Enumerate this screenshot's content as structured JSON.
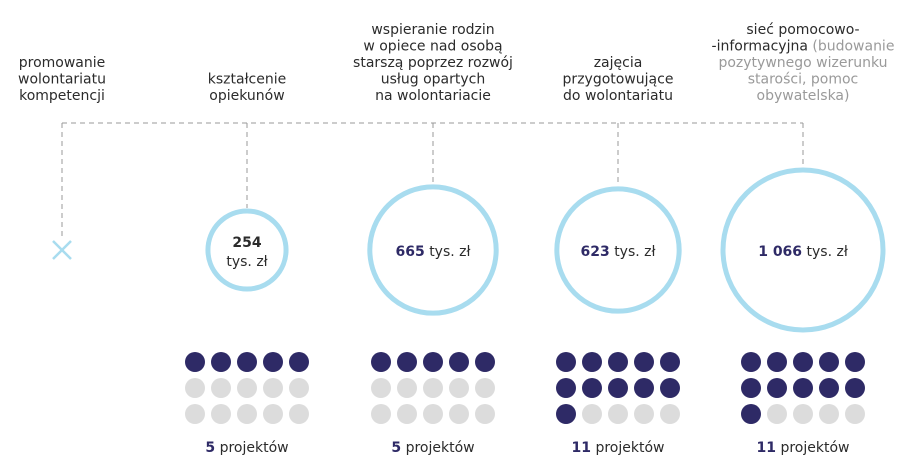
{
  "chart_data": {
    "type": "bubble",
    "categories": [
      [
        "promowanie",
        "wolontariatu",
        "kompetencji"
      ],
      [
        "kształcenie",
        "opiekunów"
      ],
      [
        "wspieranie rodzin",
        "w opiece nad osobą",
        "starszą poprzez rozwój",
        "usług opartych",
        "na wolontariacie"
      ],
      [
        "zajęcia",
        "przygotowujące",
        "do wolontariatu"
      ],
      [
        "sieć pomocowo-",
        "-informacyjna"
      ]
    ],
    "category_notes": [
      null,
      null,
      null,
      null,
      [
        "(budowanie",
        "pozytywnego wizerunku",
        "starości, pomoc",
        "obywatelska)"
      ]
    ],
    "values": [
      null,
      254,
      665,
      623,
      1066
    ],
    "value_labels": [
      null,
      "254",
      "665",
      "623",
      "1 066"
    ],
    "unit": "tys. zł",
    "projects": [
      null,
      5,
      5,
      11,
      11
    ],
    "projects_unit": "projektów",
    "color": "#a8dcef",
    "accent_color": "#2e2a66",
    "empty_color": "#dcdcdc",
    "note_color": "#9a9a9a"
  }
}
